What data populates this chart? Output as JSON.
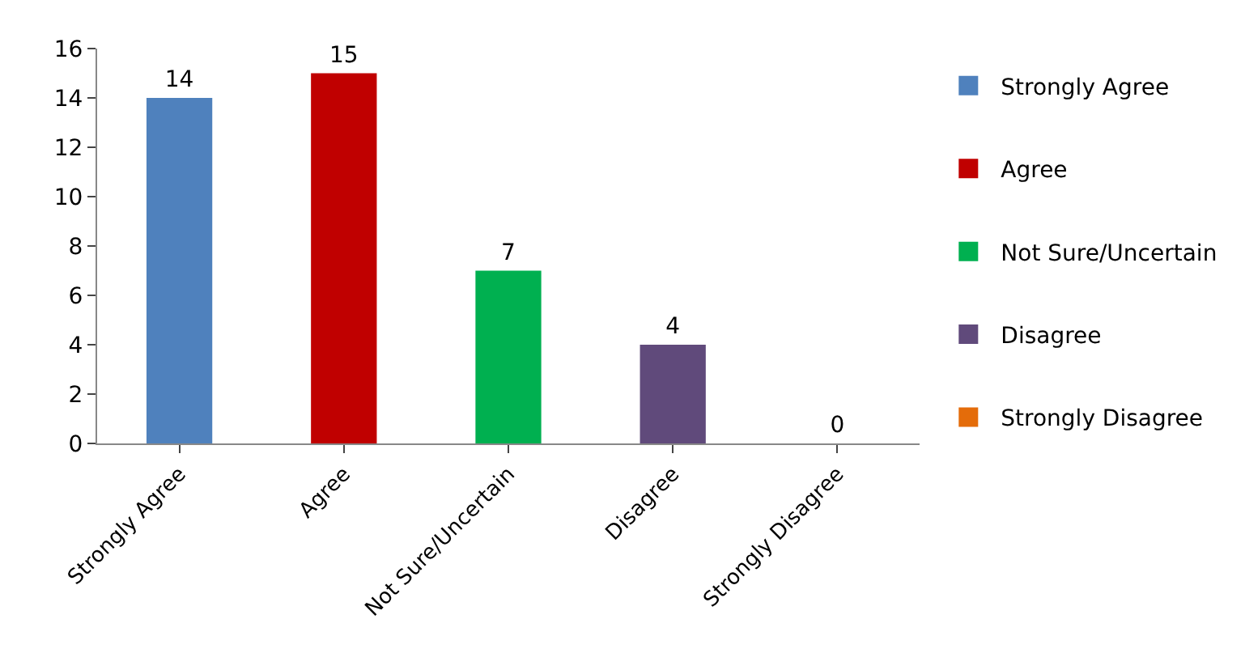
{
  "chart_data": {
    "type": "bar",
    "categories": [
      "Strongly Agree",
      "Agree",
      "Not Sure/Uncertain",
      "Disagree",
      "Strongly Disagree"
    ],
    "stacked": true,
    "series": [
      {
        "name": "Strongly Agree",
        "color": "#4f81bd",
        "values": [
          14,
          null,
          null,
          null,
          null
        ]
      },
      {
        "name": "Agree",
        "color": "#c00000",
        "values": [
          null,
          15,
          null,
          null,
          null
        ]
      },
      {
        "name": "Not Sure/Uncertain",
        "color": "#00b050",
        "values": [
          null,
          null,
          7,
          null,
          null
        ]
      },
      {
        "name": "Disagree",
        "color": "#604a7b",
        "values": [
          null,
          null,
          null,
          4,
          null
        ]
      },
      {
        "name": "Strongly Disagree",
        "color": "#e46c0a",
        "values": [
          null,
          null,
          null,
          null,
          0
        ]
      }
    ],
    "ylim": [
      0,
      16
    ],
    "yticks": [
      0,
      2,
      4,
      6,
      8,
      10,
      12,
      14,
      16
    ],
    "data_labels": true,
    "legend": "right"
  }
}
